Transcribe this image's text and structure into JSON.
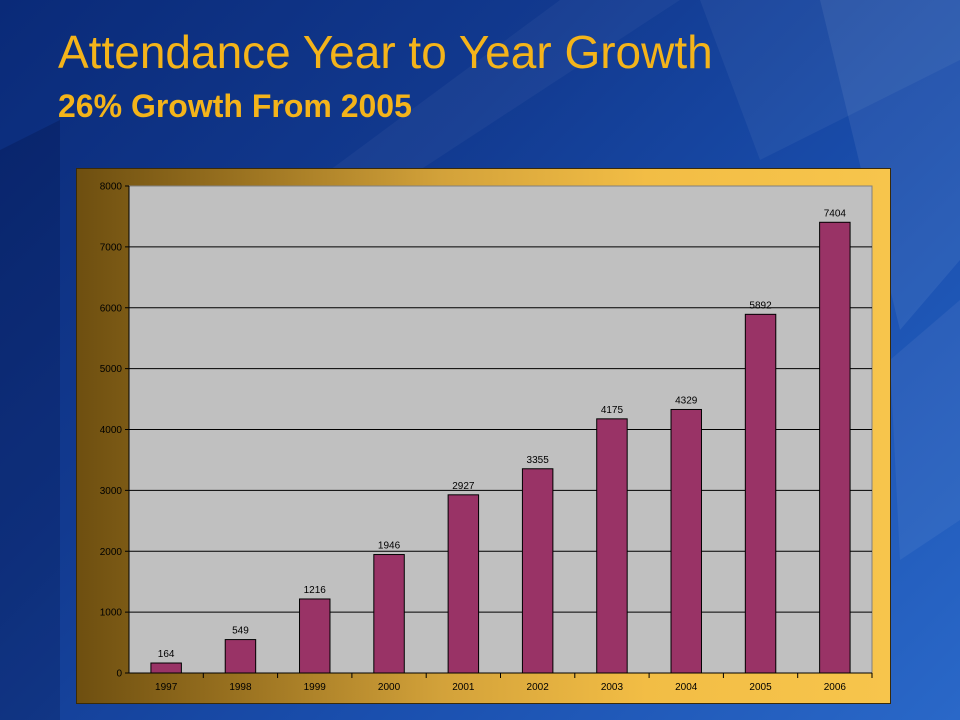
{
  "slide": {
    "title": "Attendance Year to Year Growth",
    "subtitle": "26% Growth From 2005"
  },
  "colors": {
    "title_text": "#f4b41a",
    "bar_fill": "#993366",
    "plot_area": "#c0c0c0"
  },
  "chart_data": {
    "type": "bar",
    "categories": [
      "1997",
      "1998",
      "1999",
      "2000",
      "2001",
      "2002",
      "2003",
      "2004",
      "2005",
      "2006"
    ],
    "values": [
      164,
      549,
      1216,
      1946,
      2927,
      3355,
      4175,
      4329,
      5892,
      7404
    ],
    "data_labels": [
      "164",
      "549",
      "1216",
      "1946",
      "2927",
      "3355",
      "4175",
      "4329",
      "5892",
      "7404"
    ],
    "y_ticks": [
      "0",
      "1000",
      "2000",
      "3000",
      "4000",
      "5000",
      "6000",
      "7000",
      "8000"
    ],
    "ylim": [
      0,
      8000
    ],
    "title": "",
    "xlabel": "",
    "ylabel": "",
    "grid": true,
    "legend": false
  }
}
